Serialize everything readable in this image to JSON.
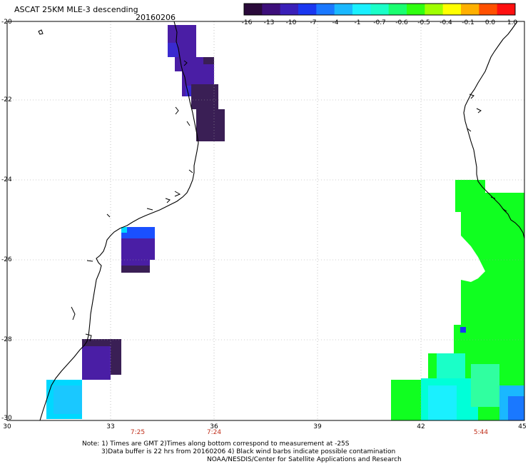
{
  "title": "ASCAT 25KM MLE-3 descending",
  "date": "20160206",
  "colorbar": {
    "labels": [
      "-16",
      "-13",
      "-10",
      "-7",
      "-4",
      "-1",
      "-0.7",
      "-0.6",
      "-0.5",
      "-0.4",
      "-0.1",
      "0.0",
      "1.0"
    ],
    "colors": [
      "#2a0a3a",
      "#3d0f7a",
      "#3a1fb8",
      "#1a37f0",
      "#1a78ff",
      "#1ab8ff",
      "#1af0ff",
      "#1affc8",
      "#1aff70",
      "#30ff10",
      "#a0ff00",
      "#ffff00",
      "#ffb000",
      "#ff5000",
      "#ff1010"
    ]
  },
  "map": {
    "lat_labels": [
      "-20",
      "-22",
      "-24",
      "-26",
      "-28",
      "-30"
    ],
    "lon_labels": [
      "30",
      "33",
      "36",
      "39",
      "42",
      "45"
    ],
    "pass_times": [
      {
        "lon": "33",
        "time": "7:25"
      },
      {
        "lon": "36",
        "time": "7:24"
      },
      {
        "lon": "45",
        "time": "5:44"
      }
    ],
    "colors": {
      "dark_purple": "#3a1f55",
      "purple": "#4a1ea5",
      "blue": "#1a50ff",
      "cyan": "#00d8ff",
      "green": "#10ff20",
      "coast": "#000000",
      "grid": "#9a9a9a"
    }
  },
  "notes": [
    "Note: 1) Times are GMT 2)Times along bottom correspond to measurement at -25S",
    "3)Data buffer is 22 hrs from 20160206 4) Black wind barbs indicate possible contamination",
    "NOAA/NESDIS/Center for Satellite Applications and Research"
  ]
}
